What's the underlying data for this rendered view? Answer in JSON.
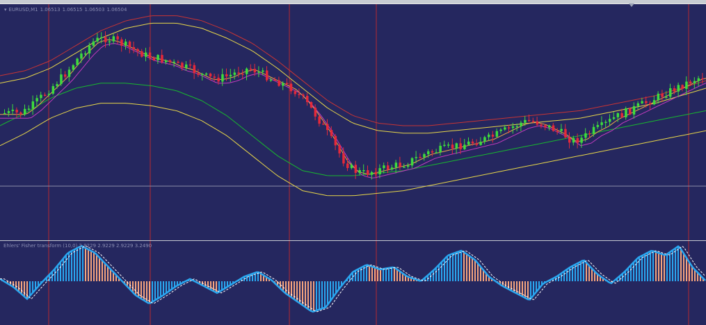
{
  "header": {
    "symbol": "EURUSD,M1",
    "open": "1.06513",
    "high": "1.06515",
    "low": "1.06503",
    "close": "1.06504"
  },
  "indicator": {
    "label": "Ehlers' Fisher transform (10,0) 2.9229 2.9229 2.9229 3.2490"
  },
  "colors": {
    "background": "#25275f",
    "bull_candle": "#3ddc3d",
    "bear_candle": "#e5293a",
    "period_separator": "#b8292f",
    "band_yellow": "#e8d74a",
    "band_red": "#c93434",
    "band_green": "#19b82e",
    "band_magenta": "#c63cc0",
    "band_orange": "#f0a84a",
    "fisher_up": "#2aa7f0",
    "fisher_down": "#f5a57e",
    "signal": "#ffffff"
  },
  "chart_data": [
    {
      "type": "candlestick",
      "title": "EURUSD,M1",
      "series": [
        {
          "name": "candles",
          "values": [
            0.5,
            0.5,
            0.5,
            0.8,
            1.2,
            1.6,
            2.0,
            2.5,
            3.0,
            3.4,
            3.5,
            3.4,
            3.2,
            3.0,
            2.8,
            2.7,
            2.6,
            2.4,
            2.3,
            2.1,
            1.9,
            1.9,
            2.0,
            2.2,
            2.3,
            2.1,
            1.9,
            1.7,
            1.5,
            1.1,
            0.6,
            0.0,
            -0.7,
            -1.4,
            -1.8,
            -1.9,
            -1.8,
            -1.7,
            -1.6,
            -1.5,
            -1.3,
            -1.1,
            -1.0,
            -0.9,
            -0.8,
            -0.7,
            -0.6,
            -0.5,
            -0.3,
            -0.1,
            0.1,
            0.2,
            0.1,
            -0.1,
            -0.3,
            -0.6,
            -0.5,
            -0.2,
            0.0,
            0.3,
            0.5,
            0.7,
            0.9,
            1.1,
            1.3,
            1.5,
            1.7,
            1.9,
            2.0
          ]
        },
        {
          "name": "band_upper_outer",
          "values": [
            1.4,
            1.6,
            2.0,
            2.6,
            3.2,
            3.6,
            3.8,
            3.8,
            3.6,
            3.2,
            2.7,
            2.0,
            1.2,
            0.4,
            -0.2,
            -0.5,
            -0.6,
            -0.6,
            -0.5,
            -0.4,
            -0.3,
            -0.2,
            -0.1,
            0.0,
            0.2,
            0.4,
            0.6,
            0.9,
            1.2
          ]
        },
        {
          "name": "band_lower_outer",
          "values": [
            -0.2,
            0.3,
            0.9,
            1.3,
            1.5,
            1.5,
            1.4,
            1.2,
            0.8,
            0.2,
            -0.6,
            -1.4,
            -2.0,
            -2.2,
            -2.2,
            -2.1,
            -2.0,
            -1.8,
            -1.6,
            -1.4,
            -1.2,
            -1.0,
            -0.8,
            -0.6,
            -0.4,
            -0.2,
            0.0,
            0.2,
            0.4
          ]
        }
      ]
    },
    {
      "type": "bar",
      "title": "Ehlers' Fisher transform (10,0)",
      "series": [
        {
          "name": "fisher",
          "values": [
            0.2,
            -0.5,
            -1.5,
            -0.2,
            1.0,
            2.4,
            3.0,
            2.4,
            1.2,
            0.0,
            -1.2,
            -1.9,
            -1.2,
            -0.4,
            0.2,
            -0.4,
            -1.0,
            -0.3,
            0.4,
            0.8,
            0.1,
            -1.0,
            -1.8,
            -2.6,
            -2.2,
            -0.6,
            0.8,
            1.4,
            1.0,
            1.2,
            0.4,
            0.0,
            1.0,
            2.2,
            2.6,
            1.8,
            0.4,
            -0.4,
            -1.0,
            -1.6,
            -0.2,
            0.4,
            1.2,
            1.8,
            0.6,
            -0.2,
            0.8,
            2.0,
            2.6,
            2.2,
            3.0,
            1.2,
            0.0
          ]
        }
      ]
    }
  ]
}
